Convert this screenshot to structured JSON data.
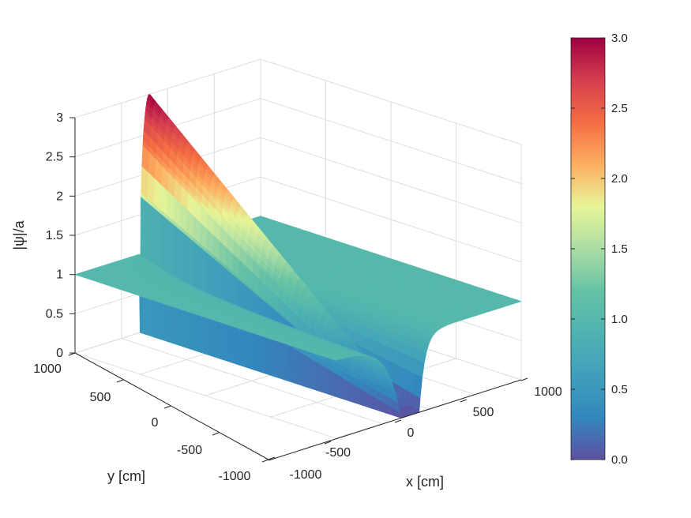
{
  "chart_data": {
    "type": "surface",
    "title": "",
    "xlabel": "x [cm]",
    "ylabel": "y [cm]",
    "zlabel": "|ψ|/a",
    "xlim": [
      -1000,
      1000
    ],
    "ylim": [
      -1000,
      1000
    ],
    "zlim": [
      0,
      3
    ],
    "x_ticks": [
      "-1000",
      "-500",
      "0",
      "500",
      "1000"
    ],
    "y_ticks": [
      "-1000",
      "-500",
      "0",
      "500",
      "1000"
    ],
    "z_ticks": [
      "0",
      "0.5",
      "1",
      "1.5",
      "2",
      "2.5",
      "3"
    ],
    "grid": true,
    "background_level": 1.0,
    "ridge": {
      "max": 3.0,
      "min": 0.0,
      "x_center": -200,
      "x_halfwidth": 100
    },
    "colormap": "spectral",
    "colorbar": {
      "position": "right",
      "range": [
        0,
        3
      ],
      "ticks": [
        "0.0",
        "0.5",
        "1.0",
        "1.5",
        "2.0",
        "2.5",
        "3.0"
      ]
    }
  }
}
